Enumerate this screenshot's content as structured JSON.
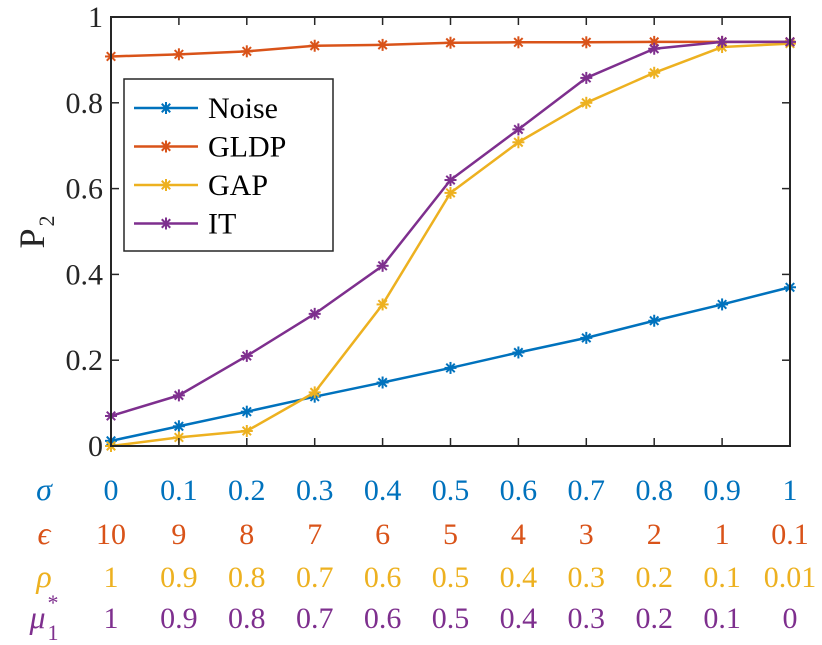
{
  "chart_data": {
    "type": "line",
    "title": "",
    "xlabel": "",
    "ylabel": {
      "base": "P",
      "subscript": "2"
    },
    "x": [
      0,
      0.1,
      0.2,
      0.3,
      0.4,
      0.5,
      0.6,
      0.7,
      0.8,
      0.9,
      1.0
    ],
    "xlim": [
      0,
      1
    ],
    "ylim": [
      0,
      1
    ],
    "yticks": [
      "0",
      "0.2",
      "0.4",
      "0.6",
      "0.8",
      "1"
    ],
    "ytick_values": [
      0,
      0.2,
      0.4,
      0.6,
      0.8,
      1
    ],
    "legend_position": "upper-left",
    "series": [
      {
        "name": "Noise",
        "color": "#0072BD",
        "marker": "asterisk",
        "values": [
          0.012,
          0.046,
          0.08,
          0.115,
          0.148,
          0.182,
          0.218,
          0.252,
          0.292,
          0.33,
          0.37
        ]
      },
      {
        "name": "GLDP",
        "color": "#D95319",
        "marker": "asterisk",
        "values": [
          0.908,
          0.913,
          0.92,
          0.933,
          0.935,
          0.94,
          0.941,
          0.941,
          0.942,
          0.942,
          0.942
        ]
      },
      {
        "name": "GAP",
        "color": "#EDB120",
        "marker": "asterisk",
        "values": [
          0.0,
          0.02,
          0.035,
          0.125,
          0.33,
          0.59,
          0.708,
          0.8,
          0.87,
          0.93,
          0.938
        ]
      },
      {
        "name": "IT",
        "color": "#7E2F8E",
        "marker": "asterisk",
        "values": [
          0.07,
          0.118,
          0.21,
          0.308,
          0.42,
          0.62,
          0.738,
          0.858,
          0.926,
          0.942,
          0.942
        ]
      }
    ],
    "parameter_rows": [
      {
        "symbol": "σ",
        "subscript": "",
        "superscript": "",
        "color": "#0072BD",
        "labels": [
          "0",
          "0.1",
          "0.2",
          "0.3",
          "0.4",
          "0.5",
          "0.6",
          "0.7",
          "0.8",
          "0.9",
          "1"
        ]
      },
      {
        "symbol": "ϵ",
        "subscript": "",
        "superscript": "",
        "color": "#D95319",
        "labels": [
          "10",
          "9",
          "8",
          "7",
          "6",
          "5",
          "4",
          "3",
          "2",
          "1",
          "0.1"
        ]
      },
      {
        "symbol": "ρ",
        "subscript": "",
        "superscript": "",
        "color": "#EDB120",
        "labels": [
          "1",
          "0.9",
          "0.8",
          "0.7",
          "0.6",
          "0.5",
          "0.4",
          "0.3",
          "0.2",
          "0.1",
          "0.01"
        ]
      },
      {
        "symbol": "μ",
        "subscript": "1",
        "superscript": "*",
        "color": "#7E2F8E",
        "labels": [
          "1",
          "0.9",
          "0.8",
          "0.7",
          "0.6",
          "0.5",
          "0.4",
          "0.3",
          "0.2",
          "0.1",
          "0"
        ]
      }
    ]
  }
}
